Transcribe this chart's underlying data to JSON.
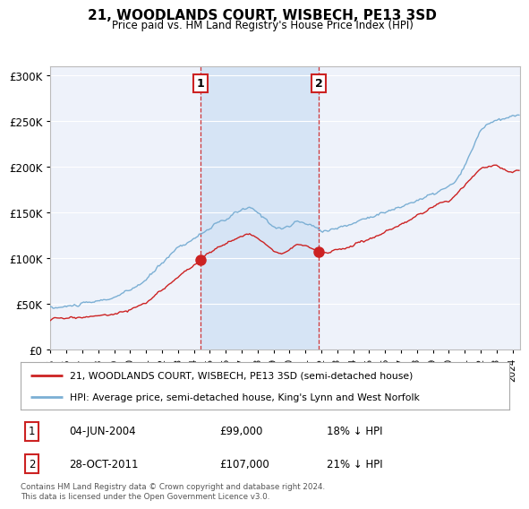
{
  "title": "21, WOODLANDS COURT, WISBECH, PE13 3SD",
  "subtitle": "Price paid vs. HM Land Registry's House Price Index (HPI)",
  "legend_line1": "21, WOODLANDS COURT, WISBECH, PE13 3SD (semi-detached house)",
  "legend_line2": "HPI: Average price, semi-detached house, King's Lynn and West Norfolk",
  "transaction1_date": "04-JUN-2004",
  "transaction1_price": "£99,000",
  "transaction1_hpi": "18% ↓ HPI",
  "transaction1_year": 2004.42,
  "transaction1_value": 99000,
  "transaction2_date": "28-OCT-2011",
  "transaction2_price": "£107,000",
  "transaction2_hpi": "21% ↓ HPI",
  "transaction2_year": 2011.83,
  "transaction2_value": 107000,
  "red_line_color": "#cc2222",
  "blue_line_color": "#7bafd4",
  "background_color": "#ffffff",
  "plot_bg_color": "#eef2fa",
  "grid_color": "#ffffff",
  "highlight_color": "#d6e4f5",
  "ylim_min": 0,
  "ylim_max": 310000,
  "xmin": 1995.0,
  "xmax": 2024.5,
  "footnote": "Contains HM Land Registry data © Crown copyright and database right 2024.\nThis data is licensed under the Open Government Licence v3.0."
}
